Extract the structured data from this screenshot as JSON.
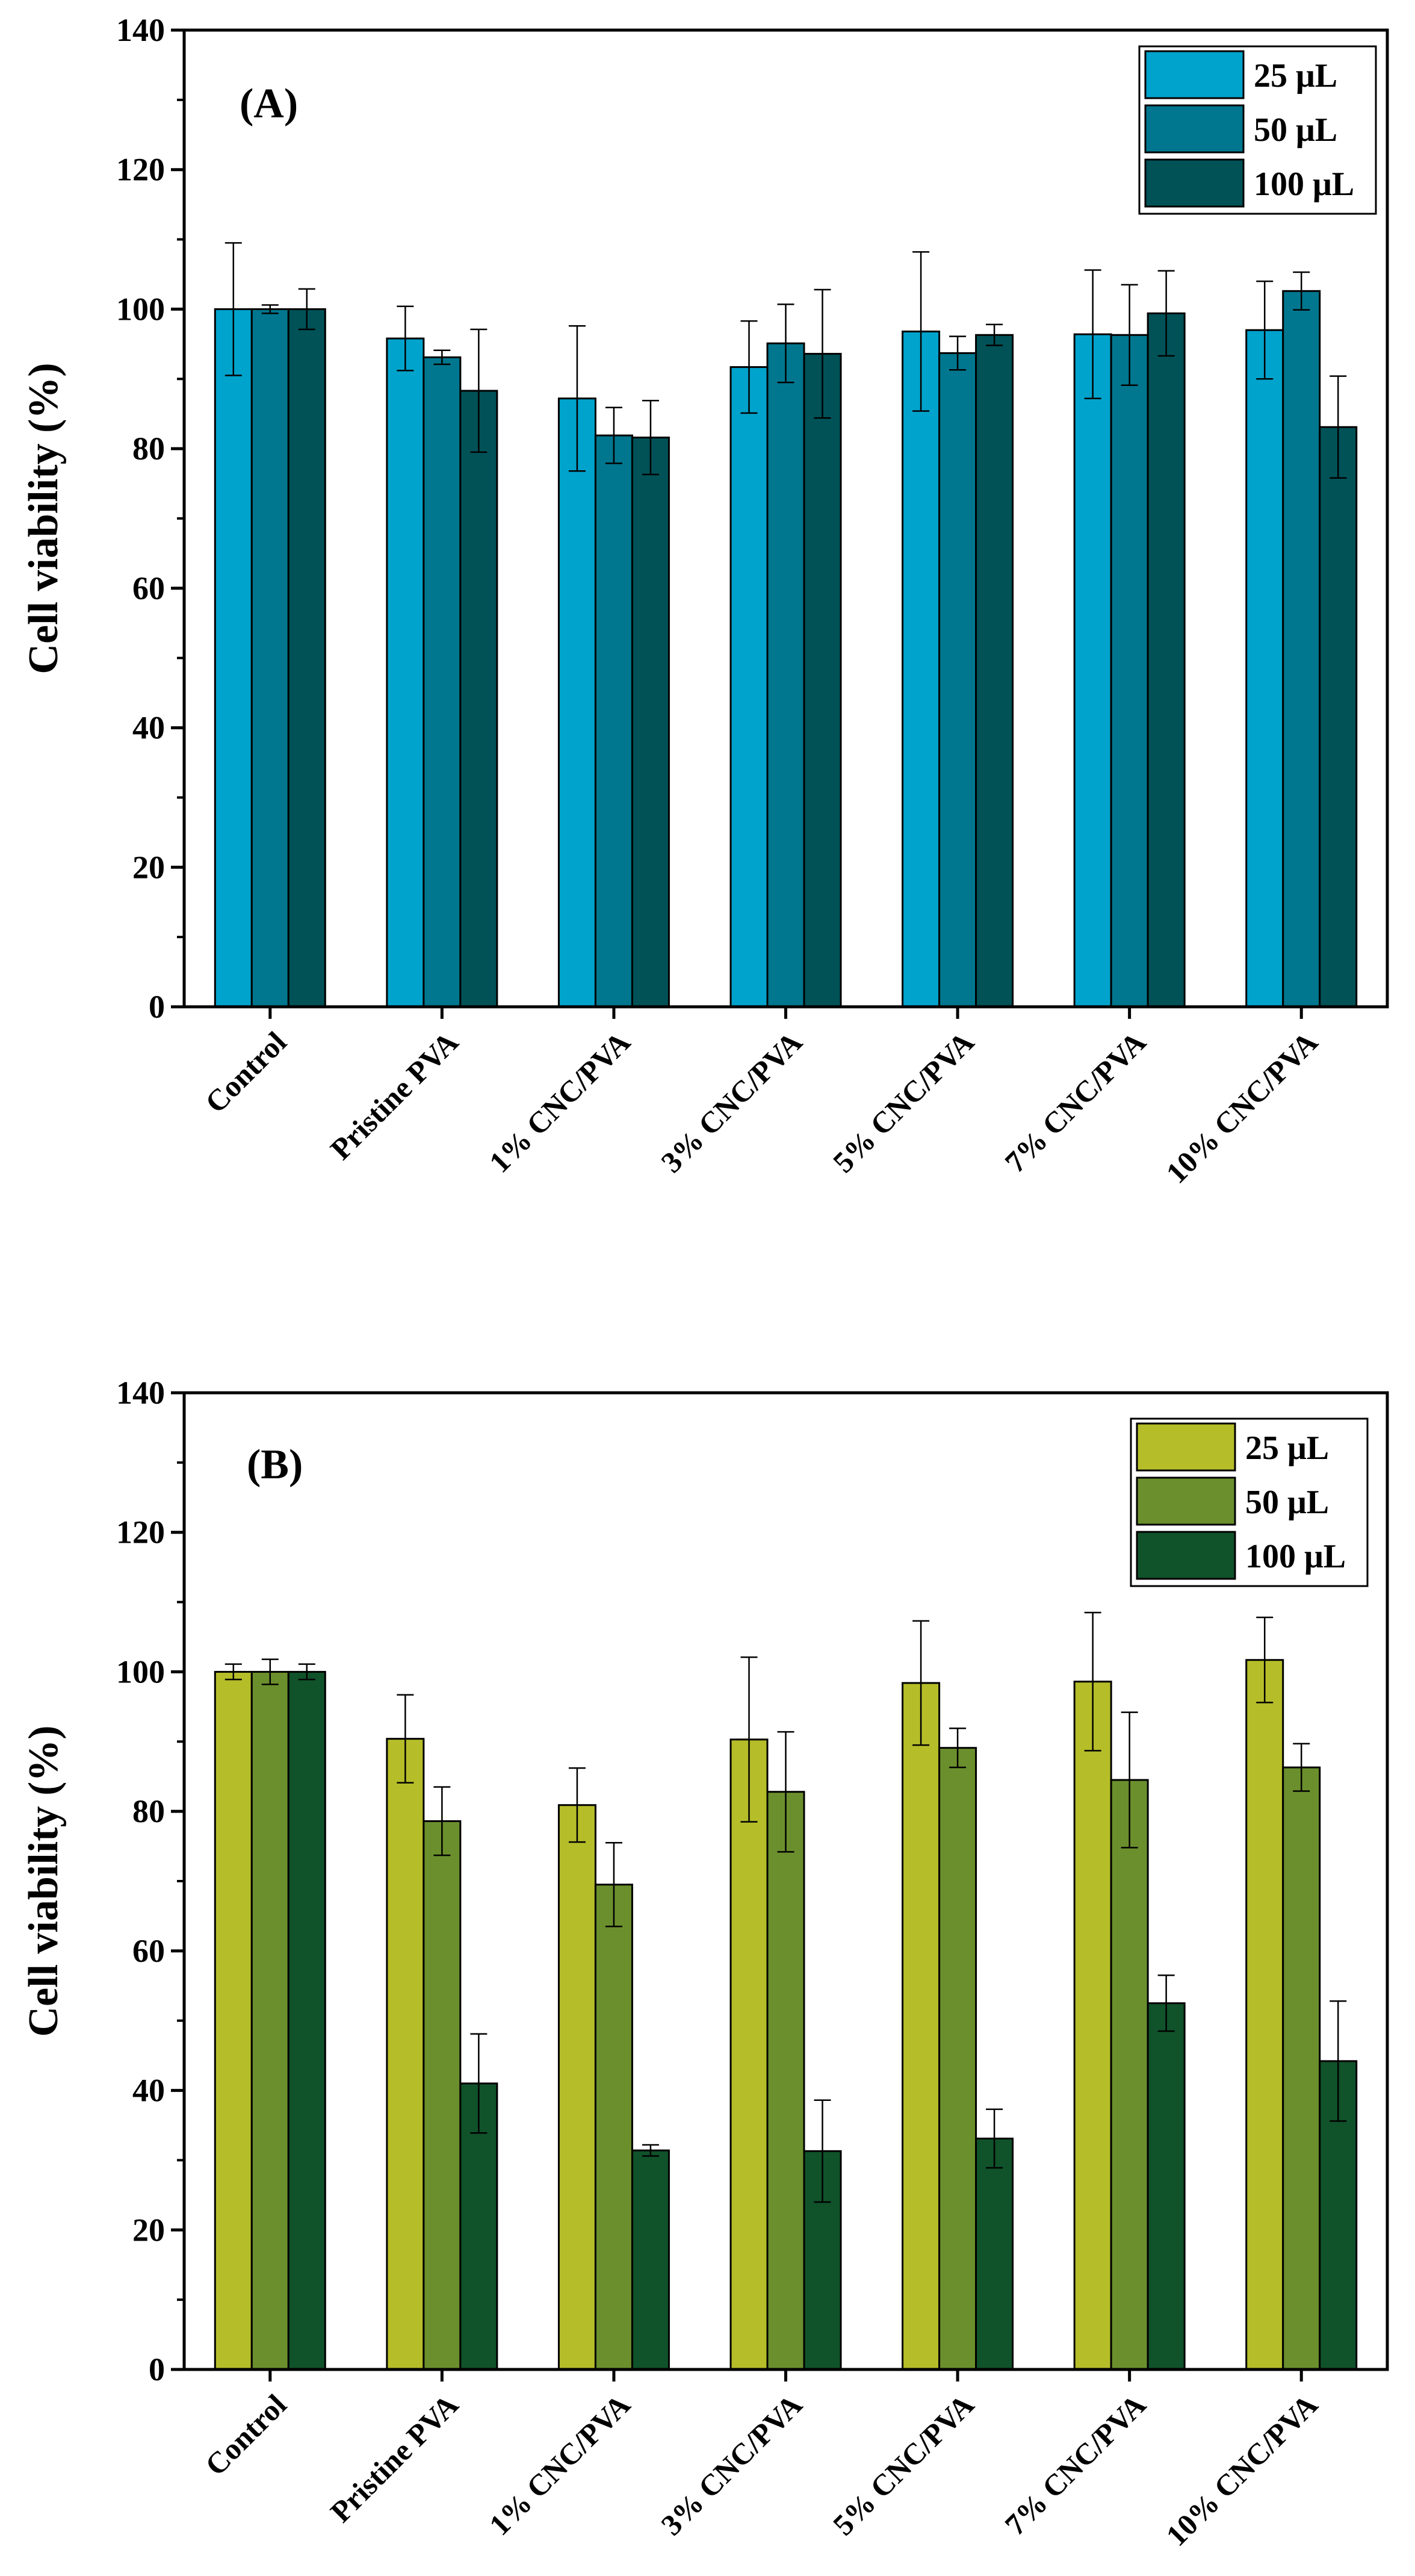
{
  "chart_data": [
    {
      "type": "bar",
      "panel_label": "(A)",
      "ylabel": "Cell viability (%)",
      "ylim": [
        0,
        140
      ],
      "yticks": [
        0,
        20,
        40,
        60,
        80,
        100,
        120,
        140
      ],
      "categories": [
        "Control",
        "Pristine PVA",
        "1% CNC/PVA",
        "3% CNC/PVA",
        "5% CNC/PVA",
        "7% CNC/PVA",
        "10% CNC/PVA"
      ],
      "legend_position": "top-right",
      "series": [
        {
          "name": "25 μL",
          "color": "#00a3cc",
          "values": [
            100,
            95.8,
            87.2,
            91.7,
            96.8,
            96.4,
            97
          ],
          "errors": [
            9.5,
            4.6,
            10.4,
            6.6,
            11.4,
            9.2,
            7
          ]
        },
        {
          "name": "50 μL",
          "color": "#00778f",
          "values": [
            100,
            93.1,
            81.9,
            95.1,
            93.7,
            96.3,
            102.6
          ],
          "errors": [
            0.6,
            1,
            4,
            5.6,
            2.4,
            7.2,
            2.7
          ]
        },
        {
          "name": "100 μL",
          "color": "#005257",
          "values": [
            100,
            88.3,
            81.6,
            93.6,
            96.3,
            99.4,
            83.1
          ],
          "errors": [
            2.9,
            8.8,
            5.3,
            9.2,
            1.5,
            6.1,
            7.3
          ]
        }
      ]
    },
    {
      "type": "bar",
      "panel_label": "(B)",
      "ylabel": "Cell viability (%)",
      "ylim": [
        0,
        140
      ],
      "yticks": [
        0,
        20,
        40,
        60,
        80,
        100,
        120,
        140
      ],
      "categories": [
        "Control",
        "Pristine PVA",
        "1% CNC/PVA",
        "3% CNC/PVA",
        "5% CNC/PVA",
        "7% CNC/PVA",
        "10% CNC/PVA"
      ],
      "legend_position": "top-right",
      "series": [
        {
          "name": "25 μL",
          "color": "#b5bd29",
          "values": [
            100,
            90.4,
            80.9,
            90.3,
            98.4,
            98.6,
            101.7
          ],
          "errors": [
            1.1,
            6.3,
            5.3,
            11.8,
            8.9,
            9.9,
            6.1
          ]
        },
        {
          "name": "50 μL",
          "color": "#6b8f2d",
          "values": [
            100,
            78.6,
            69.5,
            82.8,
            89.1,
            84.5,
            86.3
          ],
          "errors": [
            1.8,
            4.9,
            6,
            8.6,
            2.8,
            9.7,
            3.4
          ]
        },
        {
          "name": "100 μL",
          "color": "#10522a",
          "values": [
            100,
            41,
            31.4,
            31.3,
            33.1,
            52.5,
            44.2
          ],
          "errors": [
            1.1,
            7.1,
            0.8,
            7.3,
            4.2,
            4,
            8.6
          ]
        }
      ]
    }
  ]
}
